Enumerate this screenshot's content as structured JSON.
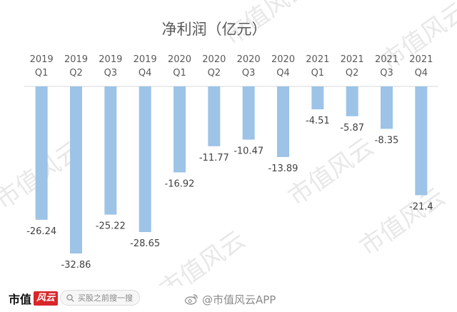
{
  "chart_data": {
    "type": "bar",
    "title": "净利润（亿元）",
    "categories": [
      [
        "2019",
        "Q1"
      ],
      [
        "2019",
        "Q2"
      ],
      [
        "2019",
        "Q3"
      ],
      [
        "2019",
        "Q4"
      ],
      [
        "2020",
        "Q1"
      ],
      [
        "2020",
        "Q2"
      ],
      [
        "2020",
        "Q3"
      ],
      [
        "2020",
        "Q4"
      ],
      [
        "2021",
        "Q1"
      ],
      [
        "2021",
        "Q2"
      ],
      [
        "2021",
        "Q3"
      ],
      [
        "2021",
        "Q4"
      ]
    ],
    "values": [
      -26.24,
      -32.86,
      -25.22,
      -28.65,
      -16.92,
      -11.77,
      -10.47,
      -13.89,
      -4.51,
      -5.87,
      -8.35,
      -21.4
    ],
    "data_labels": [
      "-26.24",
      "-32.86",
      "-25.22",
      "-28.65",
      "-16.92",
      "-11.77",
      "-10.47",
      "-13.89",
      "-4.51",
      "-5.87",
      "-8.35",
      "-21.4"
    ],
    "ylim": [
      -35,
      0
    ],
    "grid": false,
    "legend": "none",
    "xaxis_position": "top",
    "bar_color": "#9dc3e6",
    "text_color": "#595959",
    "axis_color": "#d9d9d9"
  },
  "watermark": {
    "text": "市值风云",
    "color": "#e8e8e8"
  },
  "footer": {
    "brand_text": "市值",
    "brand_seal_text": "风云",
    "brand_color": "#d8262b",
    "search_icon": "search-icon",
    "search_placeholder": "买股之前搜一搜",
    "weibo_icon": "weibo-icon",
    "weibo_text": "@市值风云APP"
  }
}
